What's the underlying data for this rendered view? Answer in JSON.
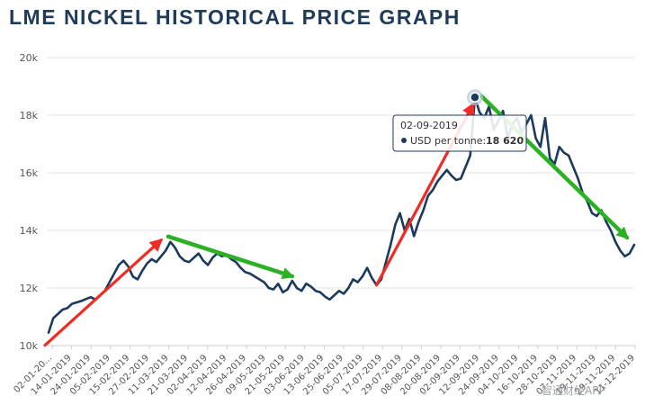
{
  "chart_data": {
    "type": "line",
    "title": "LME NICKEL HISTORICAL PRICE GRAPH",
    "xlabel": "",
    "ylabel": "",
    "ylim": [
      10000,
      20000
    ],
    "y_ticks": [
      {
        "value": 10000,
        "label": "10k"
      },
      {
        "value": 12000,
        "label": "12k"
      },
      {
        "value": 14000,
        "label": "14k"
      },
      {
        "value": 16000,
        "label": "16k"
      },
      {
        "value": 18000,
        "label": "18k"
      },
      {
        "value": 20000,
        "label": "20k"
      }
    ],
    "x_tick_labels": [
      "02-01-20...",
      "14-01-2019",
      "24-01-2019",
      "05-02-2019",
      "15-02-2019",
      "27-02-2019",
      "11-03-2019",
      "21-03-2019",
      "02-04-2019",
      "12-04-2019",
      "26-04-2019",
      "09-05-2019",
      "21-05-2019",
      "03-06-2019",
      "13-06-2019",
      "25-06-2019",
      "05-07-2019",
      "17-07-2019",
      "29-07-2019",
      "08-08-2019",
      "20-08-2019",
      "02-09-2019",
      "12-09-2019",
      "24-09-2019",
      "04-10-2019",
      "16-10-2019",
      "28-10-2019",
      "07-11-2019",
      "19-11-2019",
      "29-11-2019",
      "11-12-2019"
    ],
    "series": [
      {
        "name": "USD per tonne",
        "color": "#1b3a5c",
        "values": [
          10450,
          10950,
          11100,
          11250,
          11300,
          11450,
          11500,
          11550,
          11620,
          11680,
          11600,
          11750,
          11900,
          12200,
          12500,
          12800,
          12950,
          12750,
          12400,
          12300,
          12600,
          12850,
          13000,
          12900,
          13100,
          13300,
          13600,
          13400,
          13100,
          12950,
          12900,
          13050,
          13200,
          12950,
          12800,
          13050,
          13200,
          13100,
          13150,
          13000,
          12900,
          12700,
          12550,
          12500,
          12400,
          12300,
          12200,
          12000,
          11950,
          12150,
          11850,
          11950,
          12250,
          12000,
          11900,
          12150,
          12050,
          11900,
          11850,
          11700,
          11600,
          11750,
          11900,
          11800,
          12000,
          12300,
          12200,
          12400,
          12700,
          12350,
          12100,
          12300,
          12900,
          13500,
          14200,
          14600,
          14000,
          14400,
          13800,
          14300,
          14700,
          15200,
          15400,
          15700,
          15900,
          16100,
          15900,
          15750,
          15800,
          16200,
          16600,
          18620,
          18100,
          17900,
          18300,
          17500,
          17800,
          18150,
          17200,
          17700,
          17900,
          17400,
          17700,
          18000,
          17200,
          16900,
          17900,
          16500,
          16300,
          16900,
          16700,
          16600,
          16200,
          15800,
          15300,
          15000,
          14600,
          14500,
          14700,
          14300,
          14000,
          13600,
          13300,
          13100,
          13200,
          13500
        ]
      }
    ],
    "annotations": [
      {
        "type": "arrow",
        "color": "red",
        "trend": "up"
      },
      {
        "type": "arrow",
        "color": "green",
        "trend": "down"
      },
      {
        "type": "arrow",
        "color": "red",
        "trend": "up"
      },
      {
        "type": "arrow",
        "color": "green",
        "trend": "down"
      }
    ],
    "tooltip": {
      "date": "02-09-2019",
      "series_label": "USD per tonne:",
      "value_text": "18 620",
      "value": 18620
    }
  },
  "watermark": "智通财经APP",
  "colors": {
    "title": "#1f3b5a",
    "line": "#1b3a5c",
    "red_arrow": "#ef2b24",
    "green_arrow": "#2cb024"
  }
}
